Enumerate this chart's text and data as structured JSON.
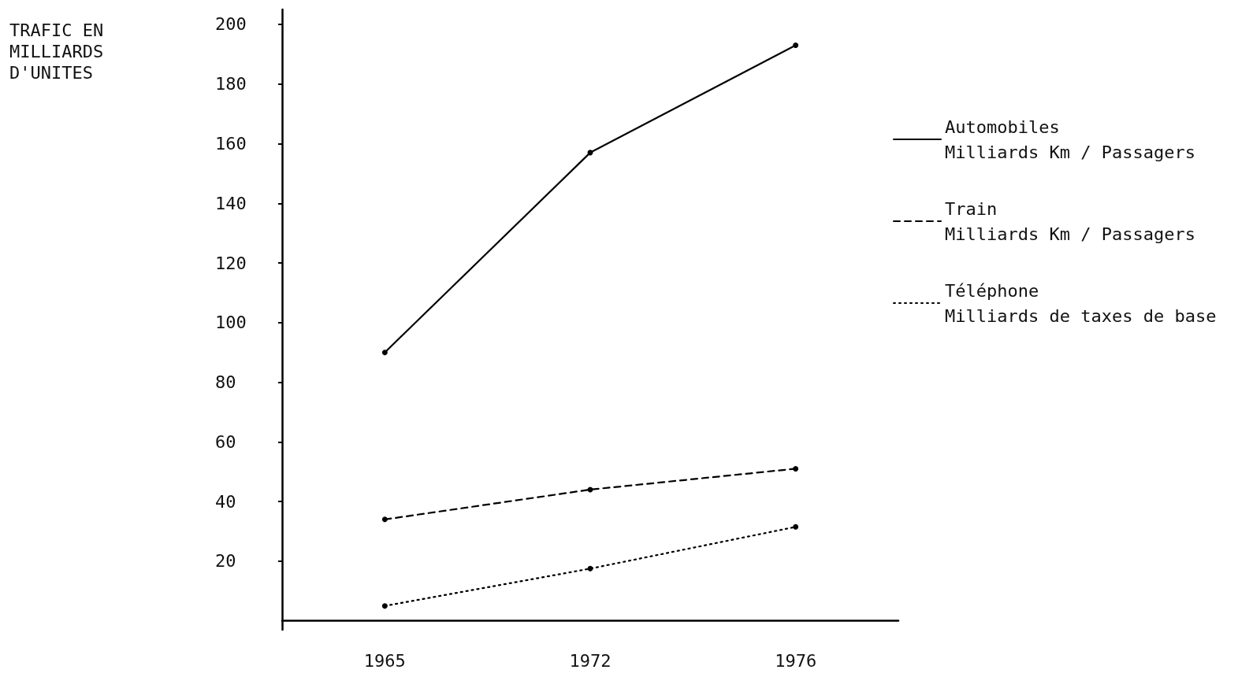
{
  "chart_data": {
    "type": "line",
    "annotations": [
      "TRAFIC EN\nMILLIARDS\nD'UNITES"
    ],
    "categories": [
      "1965",
      "1972",
      "1976"
    ],
    "series": [
      {
        "name": "Automobiles\nMilliards Km / Passagers",
        "color": "#000000",
        "values": [
          90,
          157,
          193
        ],
        "line_style": "solid"
      },
      {
        "name": "Train\nMilliards Km / Passagers",
        "color": "#000000",
        "values": [
          34,
          44,
          51
        ],
        "line_style": "dashed"
      },
      {
        "name": "Téléphone\nMilliards de taxes de base",
        "color": "#000000",
        "values": [
          5,
          17.5,
          31.5
        ],
        "line_style": "dotted"
      }
    ],
    "ylim": [
      -3,
      205
    ],
    "yticks": [
      20,
      40,
      60,
      80,
      100,
      120,
      140,
      160,
      180,
      200
    ],
    "grid": false,
    "legend": "right",
    "marker": "circle"
  }
}
